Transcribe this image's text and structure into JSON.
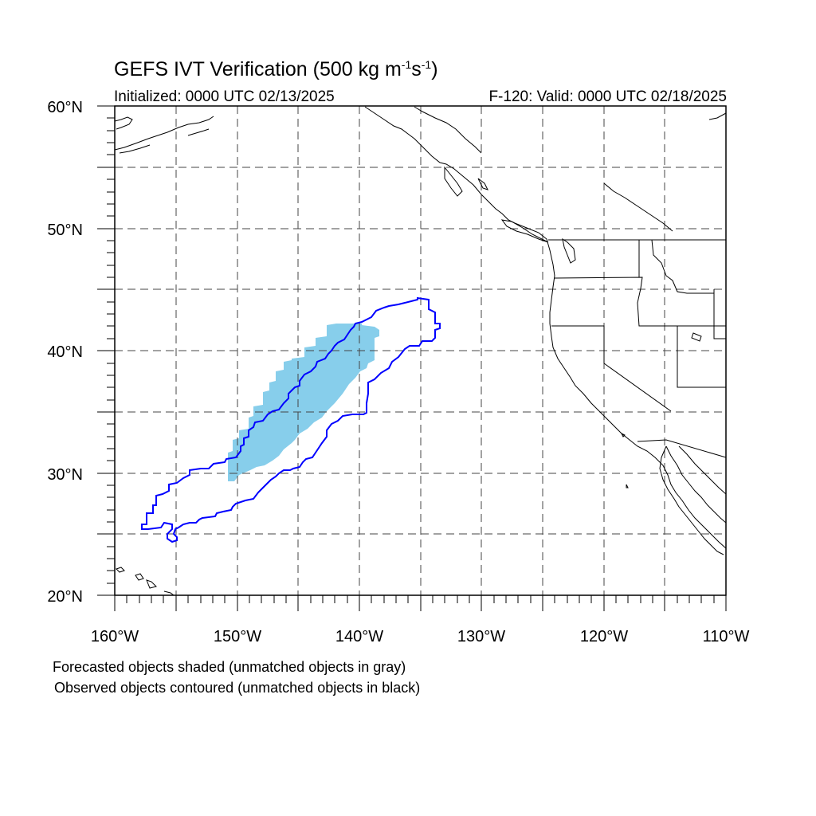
{
  "title": {
    "main": "GEFS IVT Verification (500 kg m",
    "sup1": "-1",
    "mid": "s",
    "sup2": "-1",
    "end": ")"
  },
  "subtitle": {
    "initialized": "Initialized: 0000 UTC 02/13/2025",
    "valid": "F-120: Valid: 0000 UTC 02/18/2025"
  },
  "axes": {
    "lon_range": [
      -160,
      -110
    ],
    "lat_range": [
      20,
      60
    ],
    "lat_labels": [
      "20°N",
      "30°N",
      "40°N",
      "50°N",
      "60°N"
    ],
    "lon_labels": [
      "160°W",
      "150°W",
      "140°W",
      "130°W",
      "120°W",
      "110°W"
    ],
    "grid": "dashed, every 5°"
  },
  "layers": {
    "forecast_object_color": "#87CEEB",
    "observed_contour_color": "#0000FF",
    "coastline_color": "#000000"
  },
  "captions": {
    "forecast": "Forecasted objects shaded (unmatched objects in gray)",
    "observed": "Observed objects contoured (unmatched objects in black)"
  }
}
